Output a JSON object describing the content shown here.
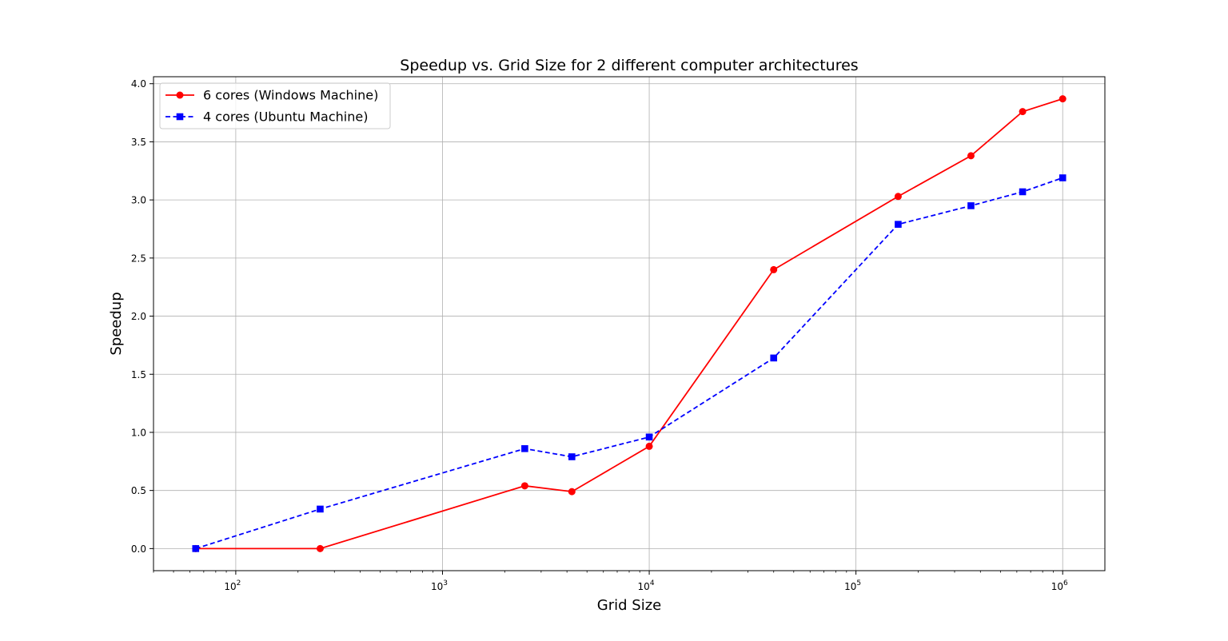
{
  "chart_data": {
    "type": "line",
    "title": "Speedup vs. Grid Size for 2 different computer architectures",
    "xlabel": "Grid Size",
    "ylabel": "Speedup",
    "xscale": "log",
    "xlim": [
      40,
      1600000
    ],
    "ylim": [
      -0.19,
      4.06
    ],
    "grid": true,
    "legend_position": "top-left",
    "x_ticks": [
      {
        "value": 100,
        "base": "10",
        "exp": "2"
      },
      {
        "value": 1000,
        "base": "10",
        "exp": "3"
      },
      {
        "value": 10000,
        "base": "10",
        "exp": "4"
      },
      {
        "value": 100000,
        "base": "10",
        "exp": "5"
      },
      {
        "value": 1000000,
        "base": "10",
        "exp": "6"
      }
    ],
    "y_ticks": [
      {
        "value": 0.0,
        "label": "0.0"
      },
      {
        "value": 0.5,
        "label": "0.5"
      },
      {
        "value": 1.0,
        "label": "1.0"
      },
      {
        "value": 1.5,
        "label": "1.5"
      },
      {
        "value": 2.0,
        "label": "2.0"
      },
      {
        "value": 2.5,
        "label": "2.5"
      },
      {
        "value": 3.0,
        "label": "3.0"
      },
      {
        "value": 3.5,
        "label": "3.5"
      },
      {
        "value": 4.0,
        "label": "4.0"
      }
    ],
    "series": [
      {
        "name": "6 cores (Windows Machine)",
        "color": "#ff0000",
        "linestyle": "solid",
        "marker": "circle",
        "x": [
          64,
          256,
          2500,
          4225,
          10000,
          40000,
          160000,
          360000,
          640000,
          1000000
        ],
        "y": [
          0.0,
          0.0,
          0.54,
          0.49,
          0.88,
          2.4,
          3.03,
          3.38,
          3.76,
          3.87
        ]
      },
      {
        "name": "4 cores (Ubuntu Machine)",
        "color": "#0000ff",
        "linestyle": "dashed",
        "marker": "square",
        "x": [
          64,
          256,
          2500,
          4225,
          10000,
          40000,
          160000,
          360000,
          640000,
          1000000
        ],
        "y": [
          0.0,
          0.34,
          0.86,
          0.79,
          0.96,
          1.64,
          2.79,
          2.95,
          3.07,
          3.19
        ]
      }
    ]
  }
}
